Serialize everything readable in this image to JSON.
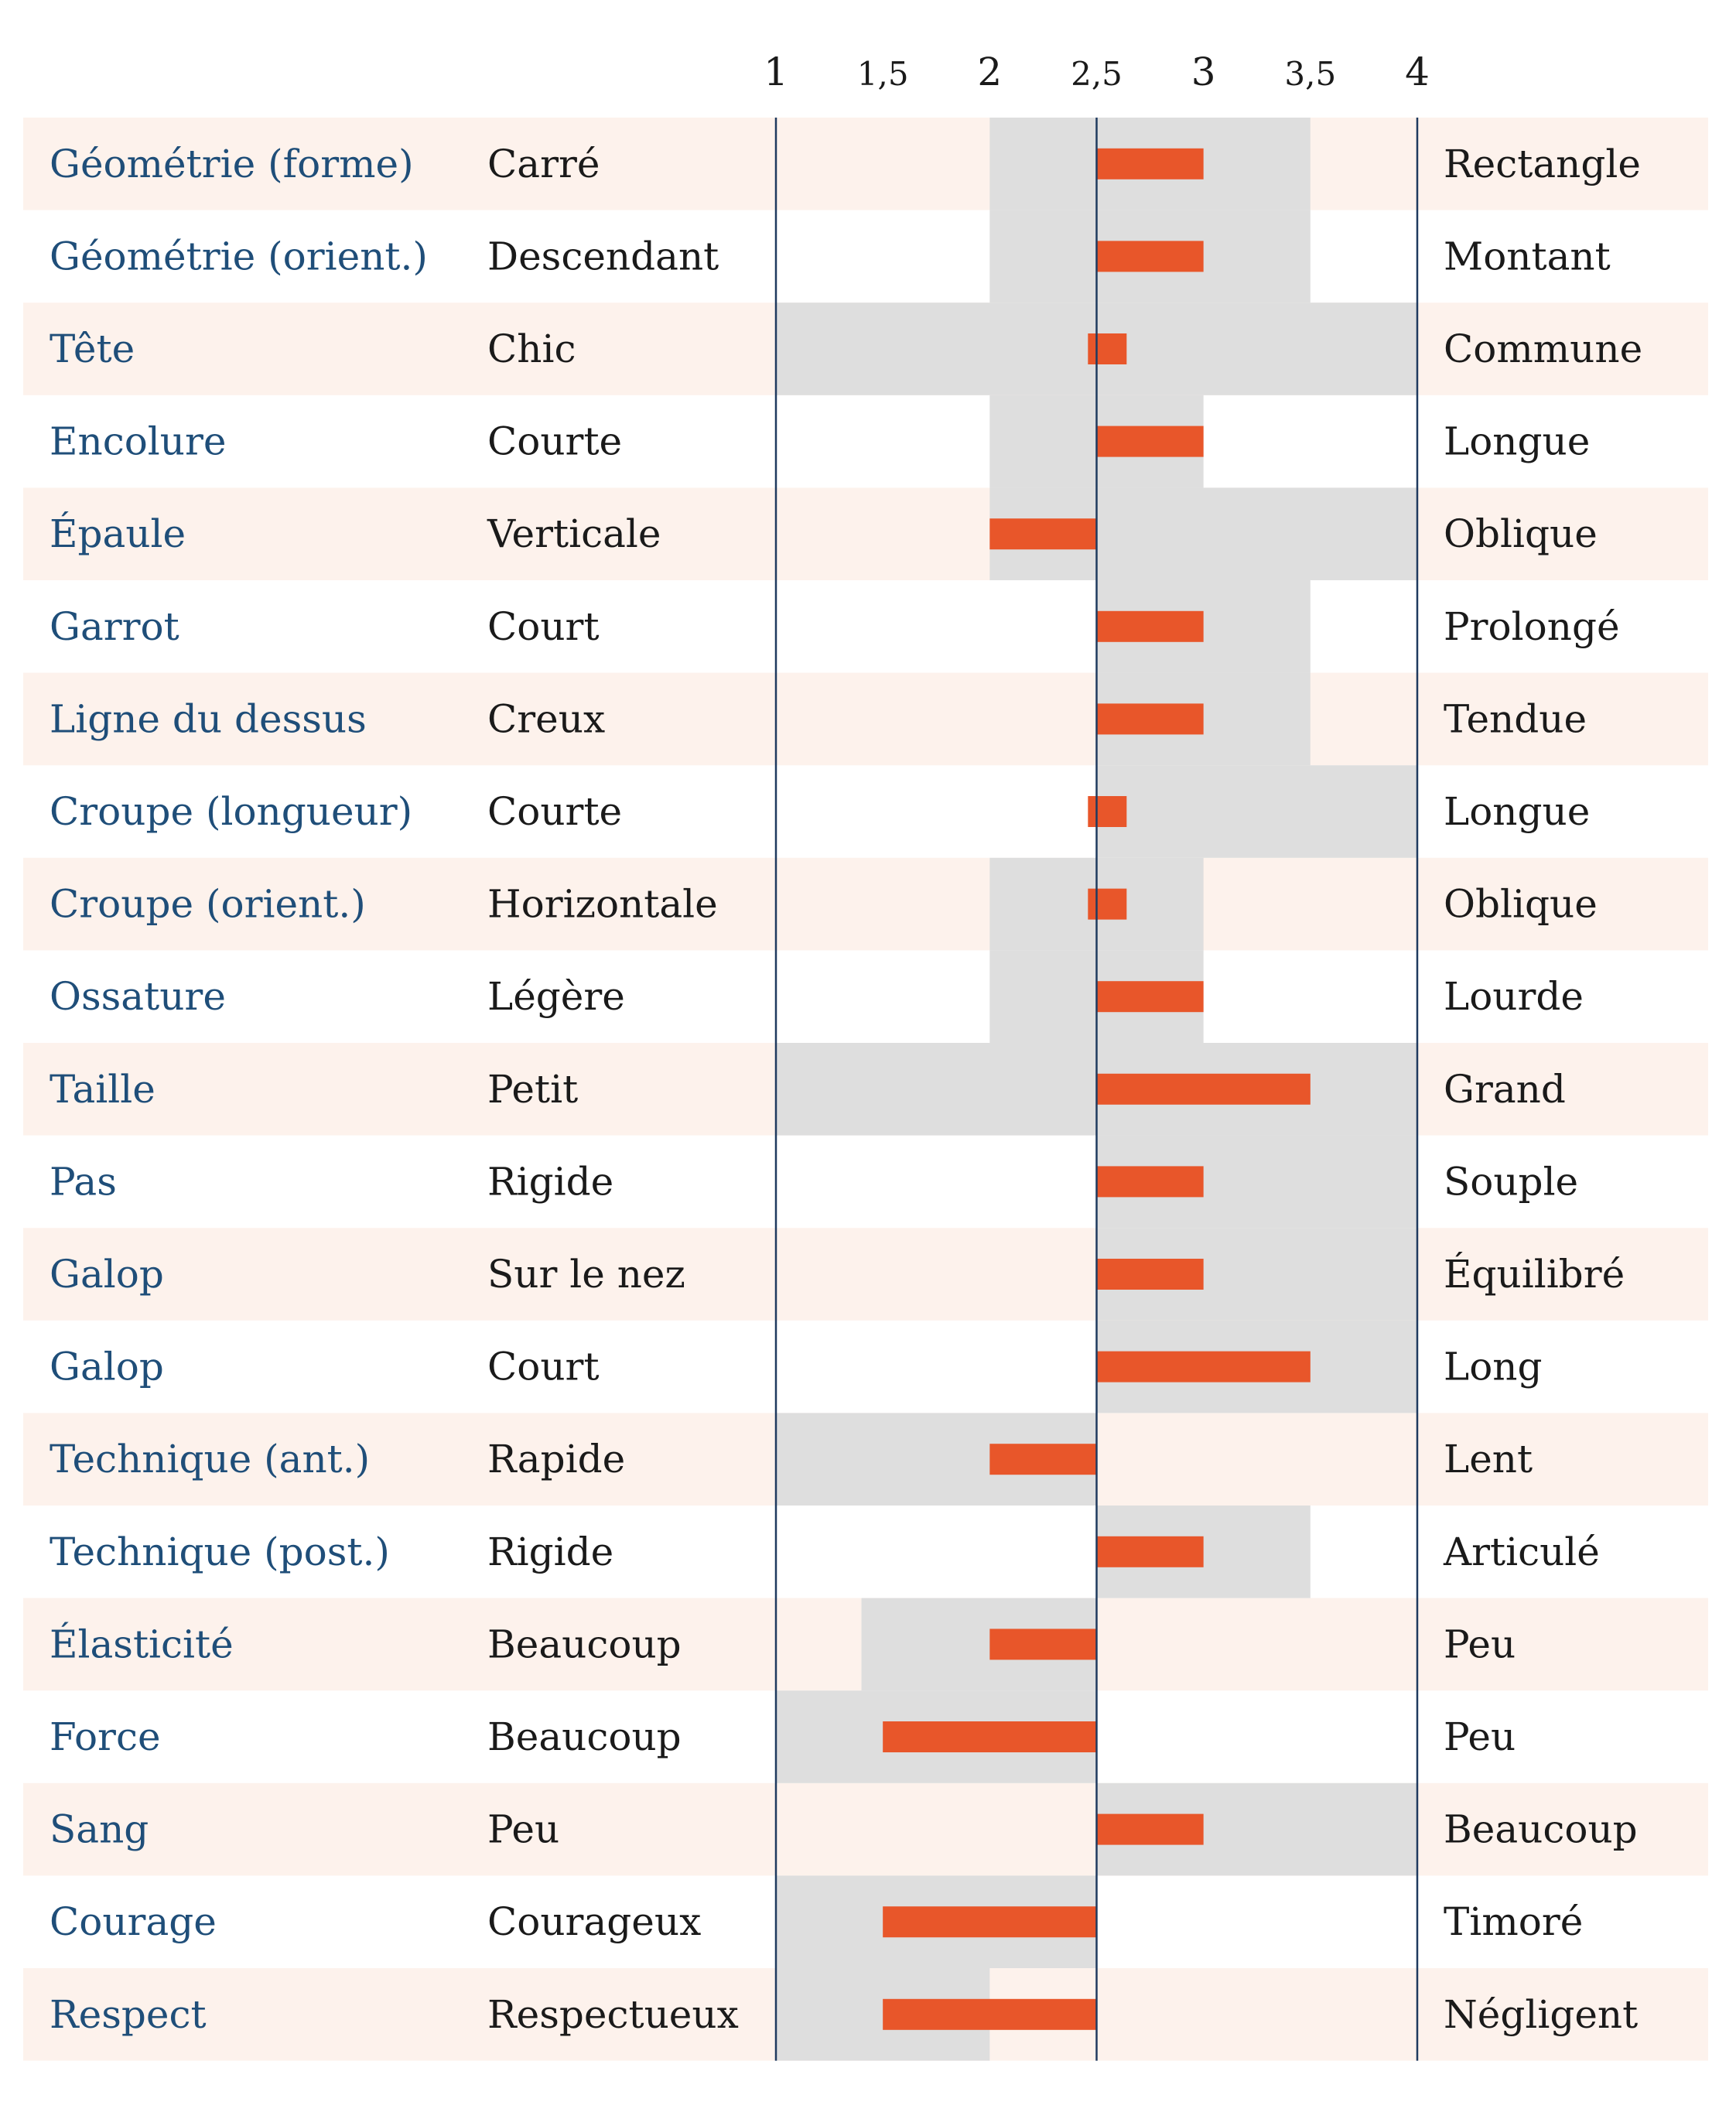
{
  "chart_data": {
    "type": "bar",
    "orientation": "horizontal",
    "baseline": 2.5,
    "xlim": [
      1,
      4
    ],
    "ticks": [
      {
        "value": 1,
        "label": "1"
      },
      {
        "value": 1.5,
        "label": "1,5"
      },
      {
        "value": 2,
        "label": "2"
      },
      {
        "value": 2.5,
        "label": "2,5"
      },
      {
        "value": 3,
        "label": "3"
      },
      {
        "value": 3.5,
        "label": "3,5"
      },
      {
        "value": 4,
        "label": "4"
      }
    ],
    "colors": {
      "bar": "#e8562a",
      "range": "#dedede",
      "row_alt": "#fdf2ec",
      "trait_text": "#1f4e79",
      "axis_line": "#1f3a5f"
    },
    "rows": [
      {
        "trait": "Géométrie (forme)",
        "low": "Carré",
        "high": "Rectangle",
        "value": 3,
        "range": [
          2,
          3.5
        ]
      },
      {
        "trait": "Géométrie (orient.)",
        "low": "Descendant",
        "high": "Montant",
        "value": 3,
        "range": [
          2,
          3.5
        ]
      },
      {
        "trait": "Tête",
        "low": "Chic",
        "high": "Commune",
        "value": 2.6,
        "range": [
          1,
          4
        ]
      },
      {
        "trait": "Encolure",
        "low": "Courte",
        "high": "Longue",
        "value": 3,
        "range": [
          2,
          3
        ]
      },
      {
        "trait": "Épaule",
        "low": "Verticale",
        "high": "Oblique",
        "value": 2,
        "range": [
          2,
          4
        ]
      },
      {
        "trait": "Garrot",
        "low": "Court",
        "high": "Prolongé",
        "value": 3,
        "range": [
          2.5,
          3.5
        ]
      },
      {
        "trait": "Ligne du dessus",
        "low": "Creux",
        "high": "Tendue",
        "value": 3,
        "range": [
          2.5,
          3.5
        ]
      },
      {
        "trait": "Croupe (longueur)",
        "low": "Courte",
        "high": "Longue",
        "value": 2.6,
        "range": [
          2.5,
          4
        ]
      },
      {
        "trait": "Croupe (orient.)",
        "low": "Horizontale",
        "high": "Oblique",
        "value": 2.6,
        "range": [
          2,
          3
        ]
      },
      {
        "trait": "Ossature",
        "low": "Légère",
        "high": "Lourde",
        "value": 3,
        "range": [
          2,
          3
        ]
      },
      {
        "trait": "Taille",
        "low": "Petit",
        "high": "Grand",
        "value": 3.5,
        "range": [
          1,
          4
        ]
      },
      {
        "trait": "Pas",
        "low": "Rigide",
        "high": "Souple",
        "value": 3,
        "range": [
          2.5,
          4
        ]
      },
      {
        "trait": "Galop",
        "low": "Sur le nez",
        "high": "Équilibré",
        "value": 3,
        "range": [
          2.5,
          4
        ]
      },
      {
        "trait": "Galop",
        "low": "Court",
        "high": "Long",
        "value": 3.5,
        "range": [
          2.5,
          4
        ]
      },
      {
        "trait": "Technique (ant.)",
        "low": "Rapide",
        "high": "Lent",
        "value": 2,
        "range": [
          1,
          2.5
        ]
      },
      {
        "trait": "Technique (post.)",
        "low": "Rigide",
        "high": "Articulé",
        "value": 3,
        "range": [
          2.5,
          3.5
        ]
      },
      {
        "trait": "Élasticité",
        "low": "Beaucoup",
        "high": "Peu",
        "value": 2,
        "range": [
          1.4,
          2.5
        ]
      },
      {
        "trait": "Force",
        "low": "Beaucoup",
        "high": "Peu",
        "value": 1.5,
        "range": [
          1,
          2.5
        ]
      },
      {
        "trait": "Sang",
        "low": "Peu",
        "high": "Beaucoup",
        "value": 3,
        "range": [
          2.5,
          4
        ]
      },
      {
        "trait": "Courage",
        "low": "Courageux",
        "high": "Timoré",
        "value": 1.5,
        "range": [
          1,
          2.5
        ]
      },
      {
        "trait": "Respect",
        "low": "Respectueux",
        "high": "Négligent",
        "value": 1.5,
        "range": [
          1,
          2
        ]
      }
    ]
  }
}
